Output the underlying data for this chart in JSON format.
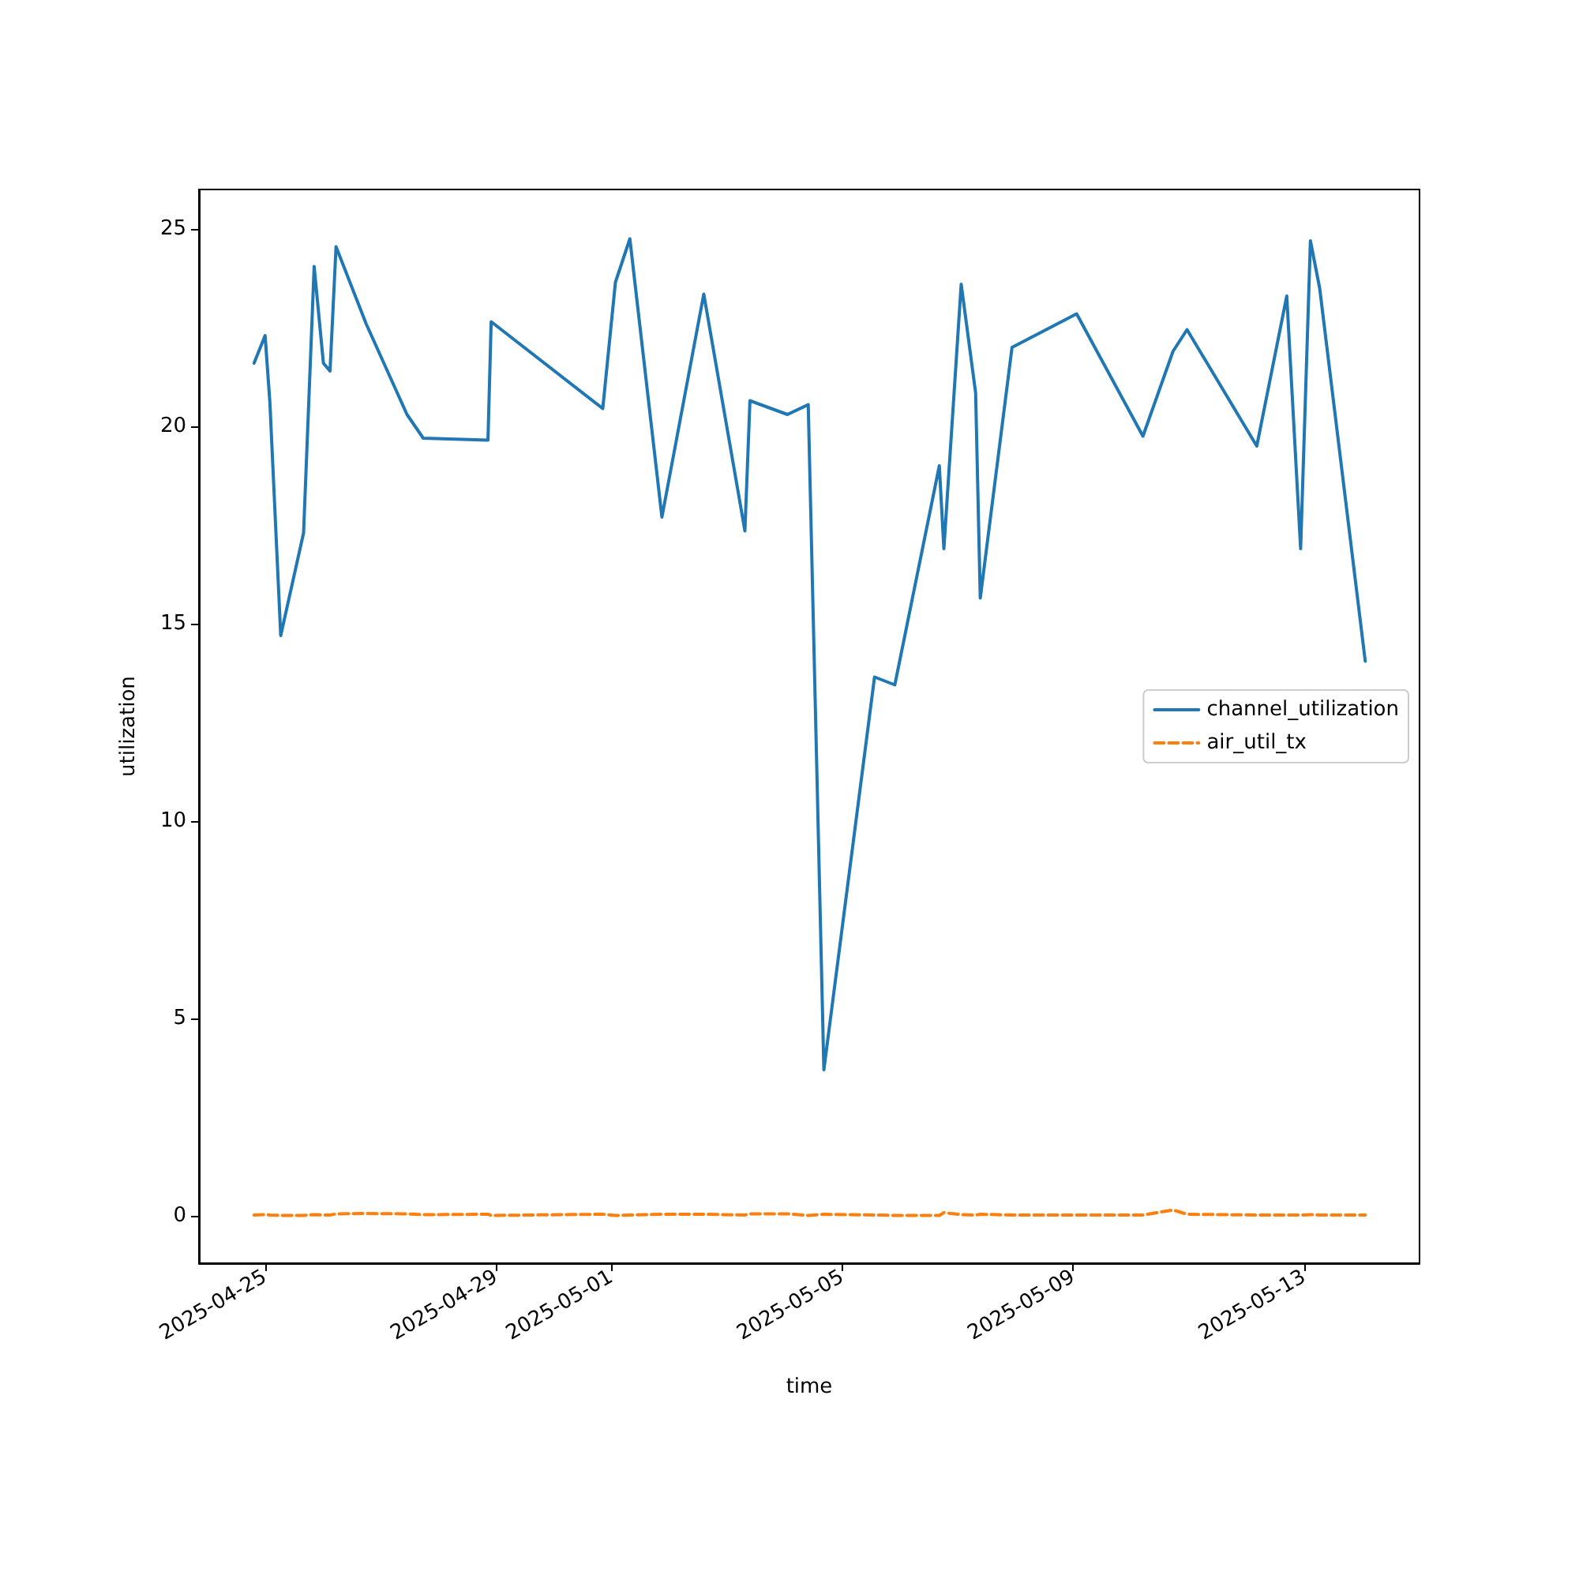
{
  "chart_data": {
    "type": "line",
    "xlabel": "time",
    "ylabel": "utilization",
    "x": [
      "2025-04-24T19:24",
      "2025-04-25T00:00",
      "2025-04-25T02:00",
      "2025-04-25T06:30",
      "2025-04-25T16:00",
      "2025-04-25T20:24",
      "2025-04-26T00:15",
      "2025-04-26T03:00",
      "2025-04-26T05:30",
      "2025-04-26T18:00",
      "2025-04-27T11:00",
      "2025-04-27T17:45",
      "2025-04-28T20:40",
      "2025-04-28T22:00",
      "2025-04-30T20:24",
      "2025-05-01T01:40",
      "2025-05-01T07:40",
      "2025-05-01T21:00",
      "2025-05-02T14:24",
      "2025-05-03T07:30",
      "2025-05-03T09:36",
      "2025-05-04T01:12",
      "2025-05-04T09:50",
      "2025-05-04T16:20",
      "2025-05-05T13:24",
      "2025-05-05T21:50",
      "2025-05-06T16:20",
      "2025-05-06T18:14",
      "2025-05-07T01:26",
      "2025-05-07T07:26",
      "2025-05-07T09:22",
      "2025-05-07T22:34",
      "2025-05-09T01:26",
      "2025-05-10T05:00",
      "2025-05-10T17:30",
      "2025-05-10T23:20",
      "2025-05-12T04:20",
      "2025-05-12T16:48",
      "2025-05-12T22:34",
      "2025-05-13T02:38",
      "2025-05-13T06:29",
      "2025-05-14T01:26"
    ],
    "series": [
      {
        "name": "channel_utilization",
        "color": "#1f77b4",
        "line_style": "solid",
        "values": [
          21.6,
          22.3,
          20.6,
          14.7,
          17.3,
          24.05,
          21.6,
          21.4,
          24.55,
          22.6,
          20.3,
          19.7,
          19.65,
          22.65,
          20.45,
          23.65,
          24.75,
          17.7,
          23.35,
          17.35,
          20.65,
          20.3,
          20.55,
          3.7,
          13.65,
          13.45,
          19.0,
          16.9,
          23.6,
          20.85,
          15.65,
          22.0,
          22.85,
          19.75,
          21.9,
          22.45,
          19.5,
          23.3,
          16.9,
          24.7,
          23.5,
          14.05
        ]
      },
      {
        "name": "air_util_tx",
        "color": "#ff7f0e",
        "line_style": "dashed",
        "values": [
          0.02,
          0.03,
          0.02,
          0.01,
          0.01,
          0.03,
          0.02,
          0.02,
          0.05,
          0.06,
          0.05,
          0.03,
          0.04,
          0.01,
          0.04,
          0.01,
          0.02,
          0.04,
          0.04,
          0.02,
          0.05,
          0.05,
          0.01,
          0.04,
          0.02,
          0.01,
          0.01,
          0.08,
          0.03,
          0.02,
          0.04,
          0.02,
          0.02,
          0.02,
          0.15,
          0.04,
          0.02,
          0.02,
          0.02,
          0.03,
          0.02,
          0.02
        ]
      }
    ],
    "xlim": [
      "2025-04-23T20:30",
      "2025-05-15T00:00"
    ],
    "xticks": [
      "2025-04-25",
      "2025-04-29",
      "2025-05-01",
      "2025-05-05",
      "2025-05-09",
      "2025-05-13"
    ],
    "ylim": [
      -1.2,
      26
    ],
    "yticks": [
      0,
      5,
      10,
      15,
      20,
      25
    ],
    "grid": false,
    "legend": "center right",
    "marker": "none"
  }
}
